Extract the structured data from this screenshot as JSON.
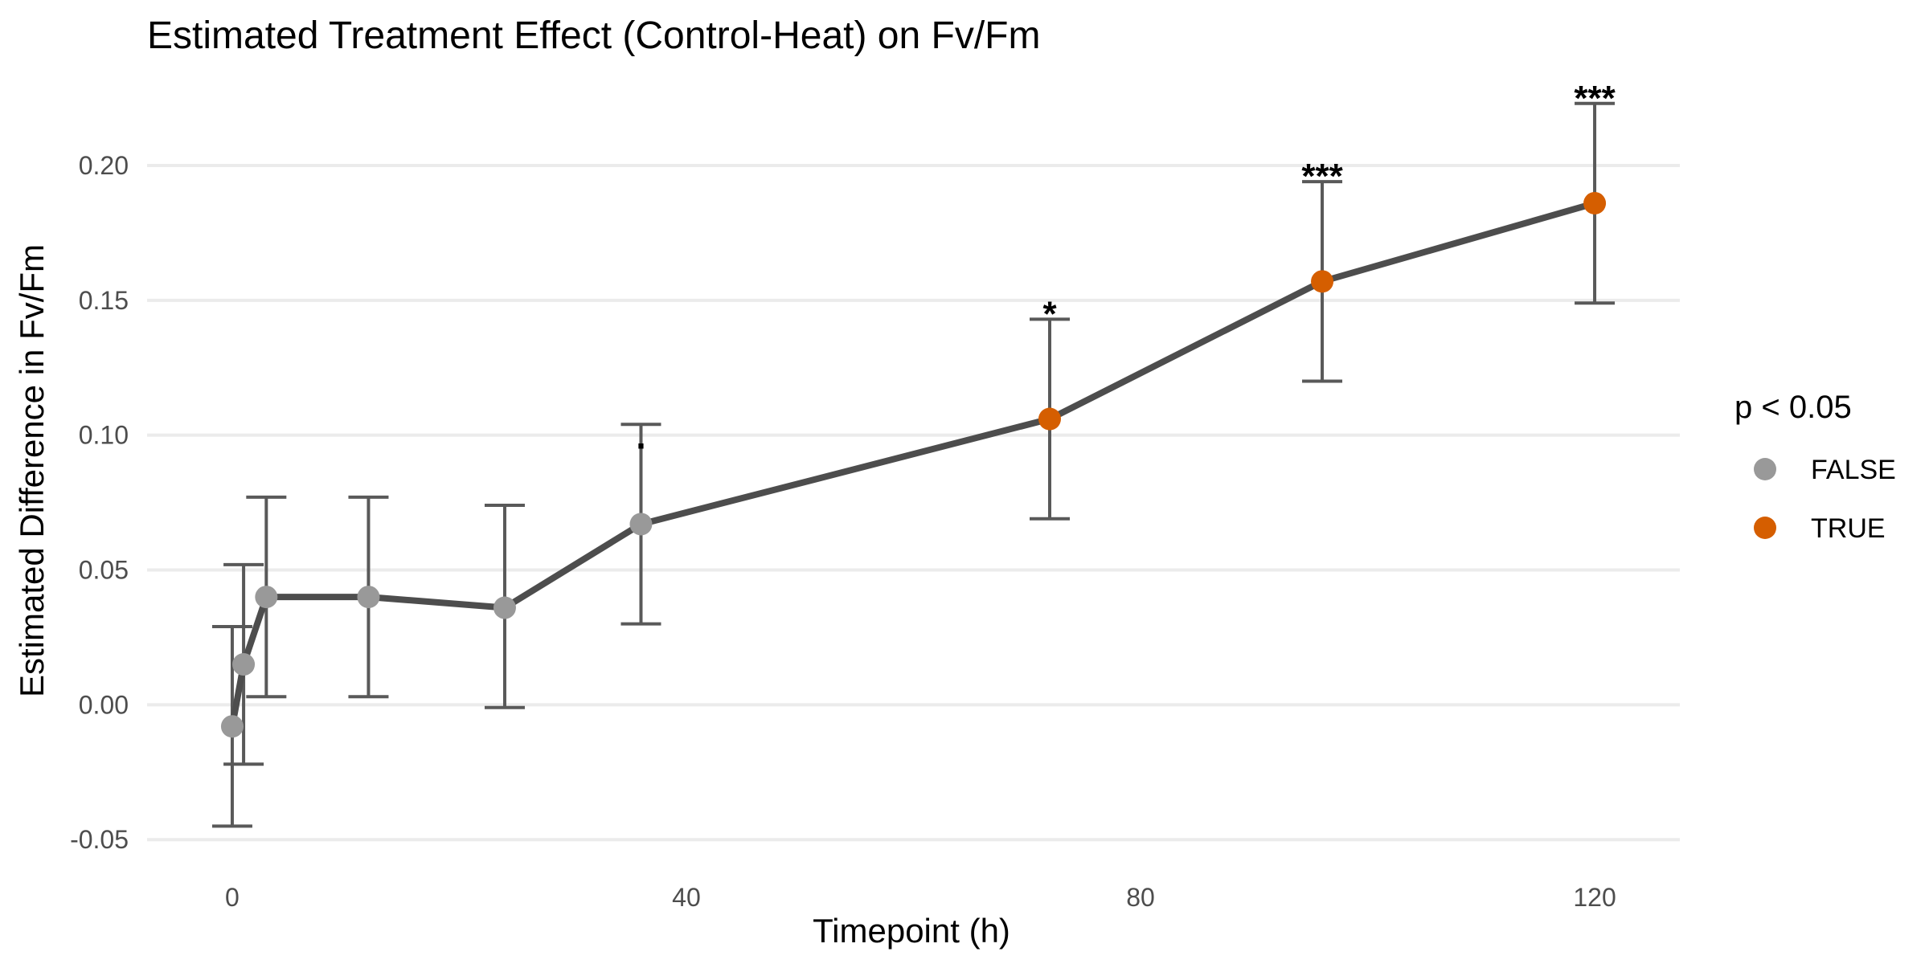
{
  "chart_data": {
    "type": "line",
    "title": "Estimated Treatment Effect (Control-Heat) on Fv/Fm",
    "xlabel": "Timepoint (h)",
    "ylabel": "Estimated Difference in Fv/Fm",
    "xlim": [
      -7.5,
      127.5
    ],
    "ylim": [
      -0.055,
      0.228
    ],
    "xticks": [
      0,
      40,
      80,
      120
    ],
    "yticks": [
      -0.05,
      0.0,
      0.05,
      0.1,
      0.15,
      0.2
    ],
    "xtick_labels": [
      "0",
      "40",
      "80",
      "120"
    ],
    "ytick_labels": [
      "-0.05",
      "0.00",
      "0.05",
      "0.10",
      "0.15",
      "0.20"
    ],
    "grid": true,
    "legend_placement": "right",
    "legend": {
      "title": "p < 0.05",
      "items": [
        {
          "label": "FALSE",
          "color": "#999999"
        },
        {
          "label": "TRUE",
          "color": "#d55e00"
        }
      ]
    },
    "line_color": "#4d4d4d",
    "errorbar_color": "#595959",
    "points": [
      {
        "x": 0,
        "y": -0.008,
        "lower": -0.045,
        "upper": 0.029,
        "significant": false,
        "label": ""
      },
      {
        "x": 1,
        "y": 0.015,
        "lower": -0.022,
        "upper": 0.052,
        "significant": false,
        "label": ""
      },
      {
        "x": 3,
        "y": 0.04,
        "lower": 0.003,
        "upper": 0.077,
        "significant": false,
        "label": ""
      },
      {
        "x": 12,
        "y": 0.04,
        "lower": 0.003,
        "upper": 0.077,
        "significant": false,
        "label": ""
      },
      {
        "x": 24,
        "y": 0.036,
        "lower": -0.001,
        "upper": 0.074,
        "significant": false,
        "label": ""
      },
      {
        "x": 36,
        "y": 0.067,
        "lower": 0.03,
        "upper": 0.104,
        "significant": false,
        "label": "."
      },
      {
        "x": 72,
        "y": 0.106,
        "lower": 0.069,
        "upper": 0.143,
        "significant": true,
        "label": "*"
      },
      {
        "x": 96,
        "y": 0.157,
        "lower": 0.12,
        "upper": 0.194,
        "significant": true,
        "label": "***"
      },
      {
        "x": 120,
        "y": 0.186,
        "lower": 0.149,
        "upper": 0.223,
        "significant": true,
        "label": "***"
      }
    ]
  }
}
